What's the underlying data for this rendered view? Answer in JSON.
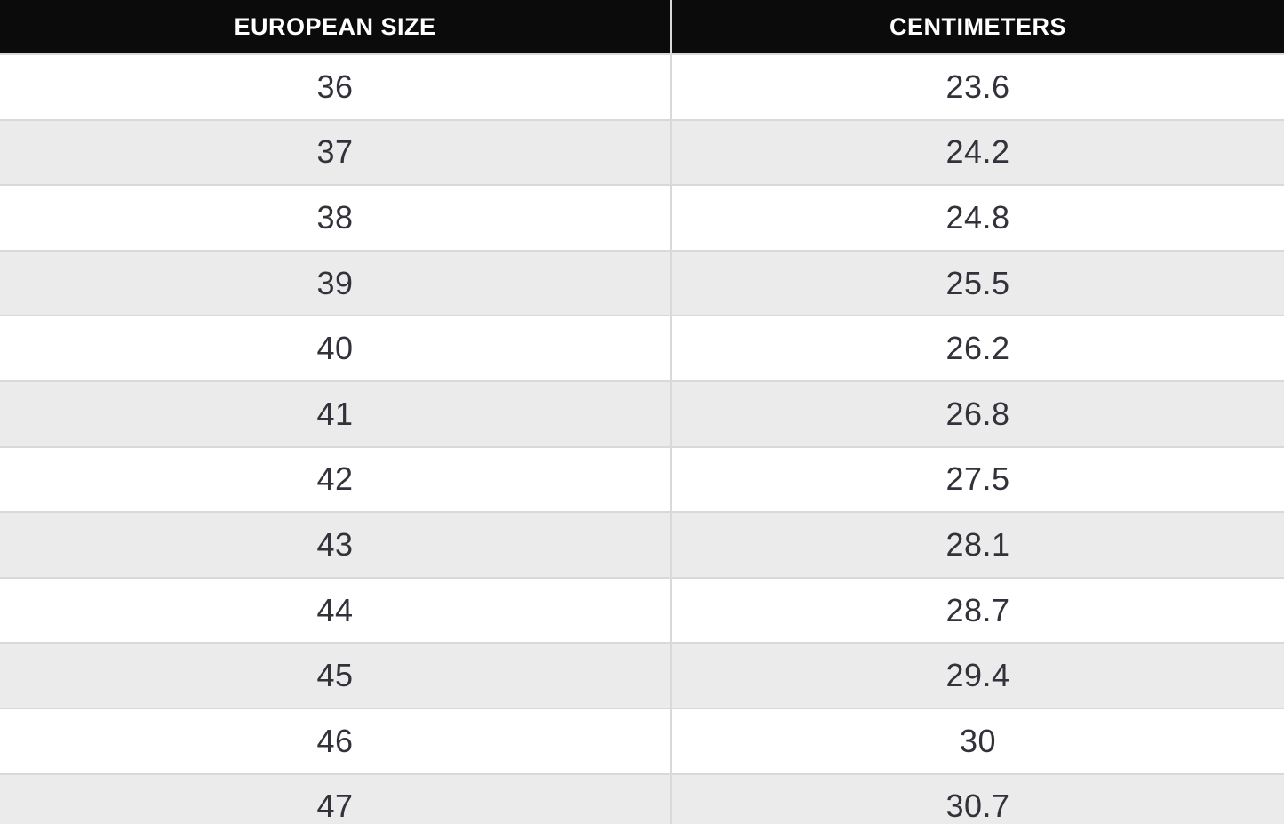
{
  "chart_data": {
    "type": "table",
    "columns": [
      "EUROPEAN SIZE",
      "CENTIMETERS"
    ],
    "rows": [
      [
        36,
        23.6
      ],
      [
        37,
        24.2
      ],
      [
        38,
        24.8
      ],
      [
        39,
        25.5
      ],
      [
        40,
        26.2
      ],
      [
        41,
        26.8
      ],
      [
        42,
        27.5
      ],
      [
        43,
        28.1
      ],
      [
        44,
        28.7
      ],
      [
        45,
        29.4
      ],
      [
        46,
        30
      ],
      [
        47,
        30.7
      ]
    ],
    "layout": {
      "header_style": "black bar, white bold uppercase labels",
      "row_striping": "white / light-gray alternating starting with white",
      "last_row_clipped": true
    }
  },
  "colors": {
    "header_bg": "#0b0b0b",
    "header_text": "#ffffff",
    "row_bg": "#ffffff",
    "row_alt_bg": "#ebebeb",
    "border": "#d9d9d9",
    "cell_text": "#32323a"
  }
}
